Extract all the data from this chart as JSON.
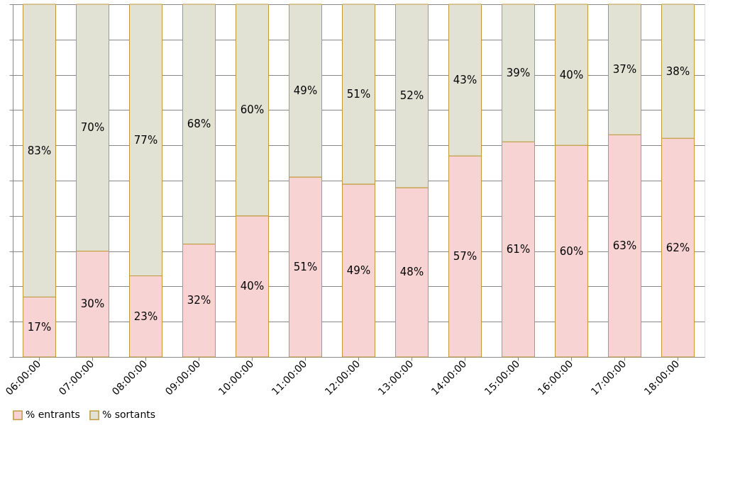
{
  "chart_data": {
    "type": "bar",
    "stacked": true,
    "categories": [
      "06:00:00",
      "07:00:00",
      "08:00:00",
      "09:00:00",
      "10:00:00",
      "11:00:00",
      "12:00:00",
      "13:00:00",
      "14:00:00",
      "15:00:00",
      "16:00:00",
      "17:00:00",
      "18:00:00"
    ],
    "series": [
      {
        "name": "% entrants",
        "color": "#f8d3d3",
        "values": [
          17,
          30,
          23,
          32,
          40,
          51,
          49,
          48,
          57,
          61,
          60,
          63,
          62
        ],
        "value_labels": [
          "17%",
          "30%",
          "23%",
          "32%",
          "40%",
          "51%",
          "49%",
          "48%",
          "57%",
          "61%",
          "60%",
          "63%",
          "62%"
        ]
      },
      {
        "name": "% sortants",
        "color": "#e1e1d4",
        "values": [
          83,
          70,
          77,
          68,
          60,
          49,
          51,
          52,
          43,
          39,
          40,
          37,
          38
        ],
        "value_labels": [
          "83%",
          "70%",
          "77%",
          "68%",
          "60%",
          "49%",
          "51%",
          "52%",
          "43%",
          "39%",
          "40%",
          "37%",
          "38%"
        ]
      }
    ],
    "ylim": [
      0,
      100
    ],
    "yticks": [
      {
        "value": 0,
        "label": null
      },
      {
        "value": 10,
        "label": null
      },
      {
        "value": 20,
        "label": null
      },
      {
        "value": 30,
        "label": null
      },
      {
        "value": 40,
        "label": null
      },
      {
        "value": 50,
        "label": null
      },
      {
        "value": 60,
        "label": null
      },
      {
        "value": 70,
        "label": null
      },
      {
        "value": 80,
        "label": null
      },
      {
        "value": 90,
        "label": null
      },
      {
        "value": 100,
        "label": null
      }
    ],
    "tick_labels": "x",
    "grid": "y",
    "legend": "bottom"
  }
}
